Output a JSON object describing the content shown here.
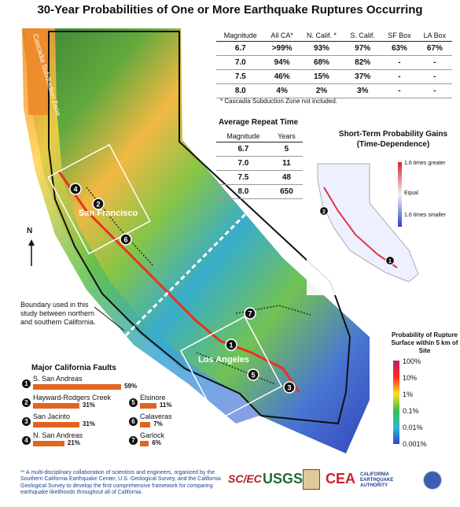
{
  "title": "30-Year Probabilities of One or More Earthquake Ruptures Occurring",
  "map": {
    "cascadia_label": "Cascadia Subduction Zone",
    "sf_label": "San Francisco",
    "la_label": "Los Angeles",
    "north_label": "N",
    "boundary_note": "Boundary used in this study between northern and southern California.",
    "fault_markers": [
      "1",
      "2",
      "3",
      "4",
      "5",
      "6",
      "7"
    ]
  },
  "probability_table": {
    "headers": [
      "Magnitude",
      "All CA*",
      "N. Calif. *",
      "S. Calif.",
      "SF Box",
      "LA Box"
    ],
    "rows": [
      [
        "6.7",
        ">99%",
        "93%",
        "97%",
        "63%",
        "67%"
      ],
      [
        "7.0",
        "94%",
        "68%",
        "82%",
        "-",
        "-"
      ],
      [
        "7.5",
        "46%",
        "15%",
        "37%",
        "-",
        "-"
      ],
      [
        "8.0",
        "4%",
        "2%",
        "3%",
        "-",
        "-"
      ]
    ],
    "note": "* Cascadia Subduction Zone not included."
  },
  "repeat_time": {
    "title": "Average Repeat Time",
    "headers": [
      "Magnitude",
      "Years"
    ],
    "rows": [
      [
        "6.7",
        "5"
      ],
      [
        "7.0",
        "11"
      ],
      [
        "7.5",
        "48"
      ],
      [
        "8.0",
        "650"
      ]
    ]
  },
  "short_term": {
    "title": "Short-Term Probability Gains (Time-Dependence)",
    "legend_greater": "1.6 times greater",
    "legend_equal": "Equal",
    "legend_smaller": "1.6 times smaller",
    "markers": [
      "2",
      "1"
    ]
  },
  "faults": {
    "title": "Major California Faults",
    "items": [
      {
        "num": "1",
        "name": "S. San Andreas",
        "pct": "59%",
        "value": 59
      },
      {
        "num": "2",
        "name": "Hayward-Rodgers Creek",
        "pct": "31%",
        "value": 31
      },
      {
        "num": "3",
        "name": "San Jacinto",
        "pct": "31%",
        "value": 31
      },
      {
        "num": "4",
        "name": "N. San Andreas",
        "pct": "21%",
        "value": 21
      },
      {
        "num": "5",
        "name": "Elsinore",
        "pct": "11%",
        "value": 11
      },
      {
        "num": "6",
        "name": "Calaveras",
        "pct": "7%",
        "value": 7
      },
      {
        "num": "7",
        "name": "Garlock",
        "pct": "6%",
        "value": 6
      }
    ]
  },
  "probability_legend": {
    "title": "Probability of Rupture Surface within 5 km of Site",
    "ticks": [
      "100%",
      "10%",
      "1%",
      "0.1%",
      "0.01%",
      "0.001%"
    ]
  },
  "footnote": "** A multi-disciplinary collaboration of scientists and engineers, organized by the Southern California Earthquake Center, U.S. Geological Survey, and the California Geological Survey to develop the first comprehensive framework for comparing earthquake likelihoods throughout all of California.",
  "logos": {
    "scec": "SC/EC",
    "usgs": "USGS",
    "cea": "CEA",
    "cea_sub": "CALIFORNIA EARTHQUAKE AUTHORITY"
  }
}
